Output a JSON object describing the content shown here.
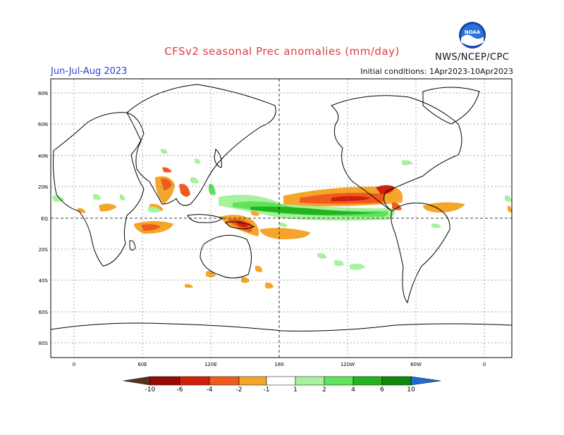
{
  "header": {
    "title": "CFSv2 seasonal Prec anomalies (mm/day)",
    "season": "Jun-Jul-Aug 2023",
    "init": "Initial conditions: 1Apr2023-10Apr2023",
    "agency": "NWS/NCEP/CPC",
    "logo_text": "NOAA"
  },
  "map": {
    "lat_labels": [
      "80N",
      "60N",
      "40N",
      "20N",
      "EQ",
      "20S",
      "40S",
      "60S",
      "80S"
    ],
    "lon_labels": [
      "0",
      "60E",
      "120E",
      "180",
      "120W",
      "60W",
      "0"
    ],
    "grid": "dotted",
    "colors": {
      "wet1": "#a7f19f",
      "wet2": "#5ee35b",
      "wet3": "#22b31d",
      "wet4": "#0f8a0b",
      "dry1": "#f5a52a",
      "dry2": "#f05a1c",
      "dry3": "#cf1f0a",
      "dry4": "#9a0a05",
      "land": "#000000",
      "grid": "#888888"
    }
  },
  "colorbar": {
    "labels": [
      "-10",
      "-6",
      "-4",
      "-2",
      "-1",
      "1",
      "2",
      "4",
      "6",
      "10"
    ],
    "colors": [
      "#5a3020",
      "#9a0a05",
      "#cf1f0a",
      "#f05a1c",
      "#f5a52a",
      "#ffffff",
      "#a7f19f",
      "#5ee35b",
      "#22b31d",
      "#0f8a0b",
      "#1f6bd6"
    ]
  }
}
